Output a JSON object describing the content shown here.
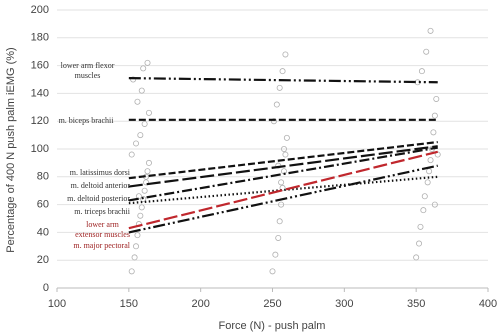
{
  "chart_data": {
    "type": "scatter-regression",
    "x_label": "Force (N) - push palm",
    "y_label": "Percentage of 400 N push palm iEMG (%)",
    "xlim": [
      100,
      400
    ],
    "xticks": [
      100,
      150,
      200,
      250,
      300,
      350,
      400
    ],
    "ylim": [
      0,
      200
    ],
    "yticks": [
      0,
      20,
      40,
      60,
      80,
      100,
      120,
      140,
      160,
      180,
      200
    ],
    "grid": true,
    "points": {
      "color": "#b0b0b0",
      "x": [
        152,
        154,
        155,
        156,
        157,
        158,
        159,
        160,
        161,
        162,
        163,
        164,
        152,
        155,
        158,
        161,
        164,
        156,
        159,
        153,
        160,
        163,
        157,
        162,
        250,
        252,
        254,
        255,
        256,
        257,
        258,
        259,
        260,
        251,
        253,
        255,
        257,
        259,
        256,
        254,
        258,
        350,
        352,
        353,
        355,
        356,
        358,
        359,
        360,
        361,
        362,
        363,
        364,
        351,
        354,
        357,
        360,
        363,
        365
      ],
      "y": [
        12,
        22,
        30,
        38,
        46,
        52,
        58,
        64,
        70,
        76,
        84,
        90,
        96,
        104,
        110,
        118,
        126,
        134,
        142,
        150,
        158,
        162,
        66,
        80,
        12,
        24,
        36,
        48,
        60,
        72,
        84,
        96,
        108,
        120,
        132,
        144,
        156,
        168,
        76,
        88,
        100,
        22,
        32,
        44,
        56,
        66,
        76,
        84,
        92,
        100,
        112,
        124,
        136,
        148,
        156,
        170,
        185,
        60,
        96
      ]
    },
    "series": [
      {
        "name": "lower arm flexor muscles",
        "color": "#111111",
        "label_color": "#333333",
        "style": "dash-dot-dot",
        "x": [
          150,
          365
        ],
        "values": [
          151,
          148
        ]
      },
      {
        "name": "m. biceps brachii",
        "color": "#111111",
        "label_color": "#333333",
        "style": "dash",
        "x": [
          150,
          365
        ],
        "values": [
          121,
          121
        ]
      },
      {
        "name": "m. latissimus dorsi",
        "color": "#111111",
        "label_color": "#333333",
        "style": "dash",
        "x": [
          150,
          365
        ],
        "values": [
          79,
          105
        ]
      },
      {
        "name": "m. deltoid anterior",
        "color": "#111111",
        "label_color": "#333333",
        "style": "long-dash",
        "x": [
          150,
          365
        ],
        "values": [
          73,
          102
        ]
      },
      {
        "name": "m. deltoid posterior",
        "color": "#111111",
        "label_color": "#333333",
        "style": "dash-dot",
        "x": [
          150,
          365
        ],
        "values": [
          63,
          101
        ]
      },
      {
        "name": "m. triceps brachii",
        "color": "#111111",
        "label_color": "#333333",
        "style": "dot",
        "x": [
          150,
          365
        ],
        "values": [
          61,
          80
        ]
      },
      {
        "name": "lower arm extensor muscles",
        "color": "#c0272d",
        "label_color": "#9b1c1c",
        "style": "long-dash",
        "x": [
          150,
          365
        ],
        "values": [
          43,
          98
        ]
      },
      {
        "name": "m. major pectoral",
        "color": "#111111",
        "label_color": "#9b1c1c",
        "style": "dash-dot-dot",
        "x": [
          150,
          365
        ],
        "values": [
          40,
          88
        ]
      }
    ]
  }
}
